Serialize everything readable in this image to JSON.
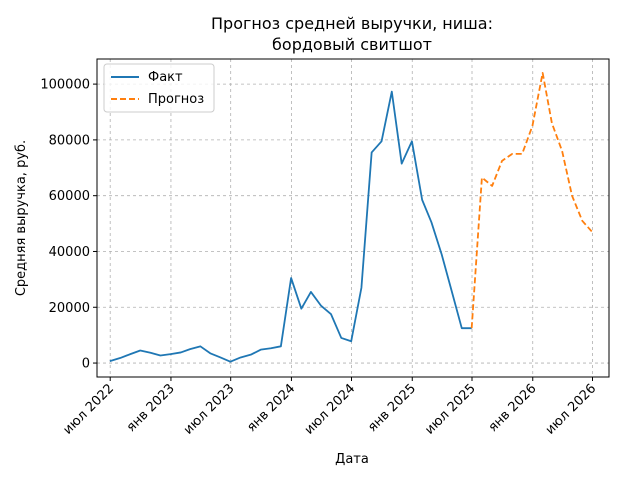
{
  "chart_data": {
    "type": "line",
    "title_lines": [
      "Прогноз средней выручки, ниша:",
      "бордовый свитшот"
    ],
    "xlabel": "Дата",
    "ylabel": "Средняя выручка, руб.",
    "xlim": [
      "2022-05-22",
      "2026-08-20"
    ],
    "ylim": [
      -5000,
      109000
    ],
    "x_ticks": [
      {
        "date": "2022-07-01",
        "label": "июл 2022"
      },
      {
        "date": "2023-01-01",
        "label": "янв 2023"
      },
      {
        "date": "2023-07-01",
        "label": "июл 2023"
      },
      {
        "date": "2024-01-01",
        "label": "янв 2024"
      },
      {
        "date": "2024-07-01",
        "label": "июл 2024"
      },
      {
        "date": "2025-01-01",
        "label": "янв 2025"
      },
      {
        "date": "2025-07-01",
        "label": "июл 2025"
      },
      {
        "date": "2026-01-01",
        "label": "янв 2026"
      },
      {
        "date": "2026-07-01",
        "label": "июл 2026"
      }
    ],
    "y_ticks": [
      {
        "value": 0,
        "label": "0"
      },
      {
        "value": 20000,
        "label": "20000"
      },
      {
        "value": 40000,
        "label": "40000"
      },
      {
        "value": 60000,
        "label": "60000"
      },
      {
        "value": 80000,
        "label": "80000"
      },
      {
        "value": 100000,
        "label": "100000"
      }
    ],
    "grid": true,
    "legend_position": "upper-left",
    "series": [
      {
        "name": "Факт",
        "color": "#1f77b4",
        "style": "solid",
        "x": [
          "2022-06-30",
          "2022-07-31",
          "2022-08-31",
          "2022-09-30",
          "2022-10-31",
          "2022-11-30",
          "2022-12-31",
          "2023-01-31",
          "2023-02-28",
          "2023-03-31",
          "2023-04-30",
          "2023-05-31",
          "2023-06-30",
          "2023-07-31",
          "2023-08-31",
          "2023-09-30",
          "2023-10-31",
          "2023-11-30",
          "2023-12-31",
          "2024-01-31",
          "2024-02-29",
          "2024-03-31",
          "2024-04-30",
          "2024-05-31",
          "2024-06-30",
          "2024-07-31",
          "2024-08-31",
          "2024-09-30",
          "2024-10-31",
          "2024-11-30",
          "2024-12-31",
          "2025-01-31",
          "2025-02-28",
          "2025-03-31",
          "2025-04-30",
          "2025-05-31",
          "2025-06-30"
        ],
        "y": [
          700,
          1800,
          3200,
          4500,
          3700,
          2700,
          3200,
          3800,
          5000,
          6000,
          3500,
          2000,
          500,
          2000,
          3000,
          4800,
          5300,
          6000,
          30500,
          19500,
          25500,
          20500,
          17500,
          9000,
          7800,
          27000,
          75500,
          79500,
          97300,
          71500,
          79500,
          58500,
          50500,
          39000,
          26000,
          12500,
          12500
        ]
      },
      {
        "name": "Прогноз",
        "color": "#ff7f0e",
        "style": "dashed",
        "x": [
          "2025-06-30",
          "2025-07-31",
          "2025-08-31",
          "2025-09-30",
          "2025-10-31",
          "2025-11-30",
          "2025-12-31",
          "2026-01-31",
          "2026-02-28",
          "2026-03-31",
          "2026-04-30",
          "2026-05-31",
          "2026-06-30"
        ],
        "y": [
          12500,
          66500,
          63500,
          72500,
          75000,
          75000,
          85000,
          104000,
          86000,
          76000,
          60000,
          51000,
          47000
        ]
      }
    ]
  }
}
